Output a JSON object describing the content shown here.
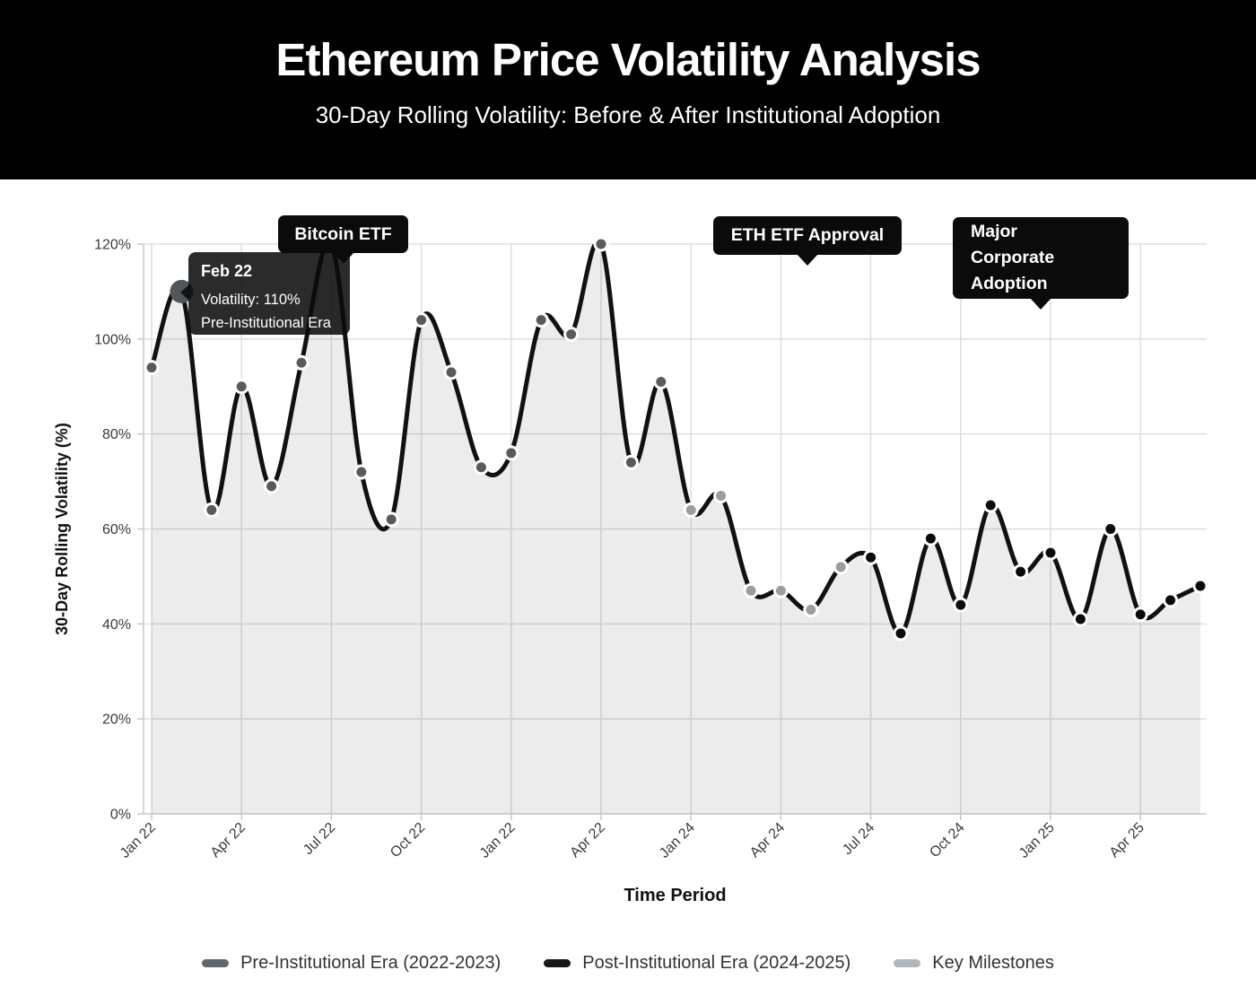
{
  "header": {
    "title": "Ethereum Price Volatility Analysis",
    "subtitle": "30-Day Rolling Volatility: Before & After Institutional Adoption"
  },
  "chart_data": {
    "type": "area",
    "title": "Ethereum Price Volatility Analysis",
    "xlabel": "Time Period",
    "ylabel": "30-Day Rolling Volatility (%)",
    "ylim": [
      0,
      120
    ],
    "grid": true,
    "legend_position": "bottom",
    "ytick_labels": [
      "0%",
      "20%",
      "40%",
      "60%",
      "80%",
      "100%",
      "120%"
    ],
    "xtick_labels": [
      "Jan 22",
      "Apr 22",
      "Jul 22",
      "Oct 22",
      "Jan 22",
      "Apr 22",
      "Jan 24",
      "Apr 24",
      "Jul 24",
      "Oct 24",
      "Jan 25",
      "Apr 25"
    ],
    "xtick_every_n_points": 3,
    "values": [
      94,
      110,
      64,
      90,
      69,
      95,
      120,
      72,
      62,
      104,
      93,
      73,
      76,
      104,
      101,
      120,
      74,
      91,
      64,
      67,
      47,
      47,
      43,
      52,
      54,
      38,
      58,
      44,
      65,
      51,
      55,
      41,
      60,
      42,
      45,
      48
    ],
    "point_series": [
      "pre",
      "pre",
      "pre",
      "pre",
      "pre",
      "pre",
      "pre",
      "pre",
      "pre",
      "pre",
      "pre",
      "pre",
      "pre",
      "pre",
      "pre",
      "pre",
      "pre",
      "pre",
      "milestone",
      "milestone",
      "milestone",
      "milestone",
      "milestone",
      "milestone",
      "post",
      "post",
      "post",
      "post",
      "post",
      "post",
      "post",
      "post",
      "post",
      "post",
      "post",
      "post"
    ]
  },
  "legend": [
    {
      "id": "pre",
      "label": "Pre-Institutional Era (2022-2023)",
      "color": "#60666b"
    },
    {
      "id": "post",
      "label": "Post-Institutional Era (2024-2025)",
      "color": "#16181a"
    },
    {
      "id": "milestone",
      "label": "Key Milestones",
      "color": "#b2b7bb"
    }
  ],
  "annotations": [
    {
      "id": "bitcoin-etf",
      "lines": [
        "Bitcoin ETF"
      ]
    },
    {
      "id": "eth-etf-approval",
      "lines": [
        "ETH ETF Approval"
      ]
    },
    {
      "id": "major-corporate-adoption",
      "lines": [
        "Major",
        "Corporate",
        "Adoption"
      ]
    }
  ],
  "tooltip": {
    "title": "Feb 22",
    "value_line": "Volatility: 110%",
    "series_line": "Pre-Institutional Era",
    "point_index": 1
  },
  "colors": {
    "line": "#111111",
    "area_fill": "rgba(0,0,0,0.075)",
    "grid": "#dedede",
    "axis": "#c8c8c8",
    "tick_text": "#3a3a3a",
    "axis_title": "#111111",
    "pre_dot": "#565b60",
    "post_dot": "#0b0b0b",
    "milestone_dot": "#999ea3",
    "active_dot": "#51565b",
    "annotation_bg": "#0b0b0b",
    "header_bg": "#000000",
    "header_text": "#ffffff"
  }
}
